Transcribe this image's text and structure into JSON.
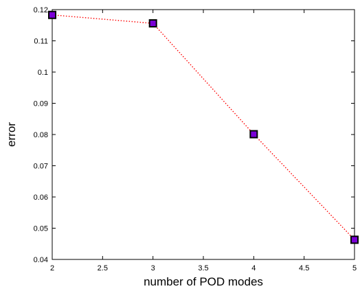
{
  "chart_data": {
    "type": "line",
    "xlabel": "number of POD modes",
    "ylabel": "error",
    "xlim": [
      2,
      5
    ],
    "ylim": [
      0.04,
      0.12
    ],
    "x_ticks": [
      "2",
      "2.5",
      "3",
      "3.5",
      "4",
      "4.5",
      "5"
    ],
    "y_ticks": [
      "0.04",
      "0.05",
      "0.06",
      "0.07",
      "0.08",
      "0.09",
      "0.1",
      "0.11",
      "0.12"
    ],
    "grid": false,
    "series": [
      {
        "x": [
          2,
          3,
          4,
          5
        ],
        "values": [
          0.1183,
          0.1156,
          0.0801,
          0.0463
        ],
        "line_color": "#ff0000",
        "line_style": "dotted",
        "marker": "square",
        "marker_face_color": "#7a00d6",
        "marker_edge_color": "#000000"
      }
    ]
  }
}
